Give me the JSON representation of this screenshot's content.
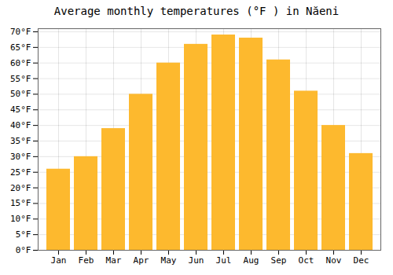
{
  "chart_data": {
    "type": "bar",
    "title": "Average monthly temperatures (°F ) in Năeni",
    "categories": [
      "Jan",
      "Feb",
      "Mar",
      "Apr",
      "May",
      "Jun",
      "Jul",
      "Aug",
      "Sep",
      "Oct",
      "Nov",
      "Dec"
    ],
    "values": [
      26,
      30,
      39,
      50,
      60,
      66,
      69,
      68,
      61,
      51,
      40,
      31
    ],
    "color": "#FDB92E",
    "ylim": [
      0,
      71
    ],
    "yticks": [
      {
        "value": 0,
        "label": "0°F"
      },
      {
        "value": 5,
        "label": "5°F"
      },
      {
        "value": 10,
        "label": "10°F"
      },
      {
        "value": 15,
        "label": "15°F"
      },
      {
        "value": 20,
        "label": "20°F"
      },
      {
        "value": 25,
        "label": "25°F"
      },
      {
        "value": 30,
        "label": "30°F"
      },
      {
        "value": 35,
        "label": "35°F"
      },
      {
        "value": 40,
        "label": "40°F"
      },
      {
        "value": 45,
        "label": "45°F"
      },
      {
        "value": 50,
        "label": "50°F"
      },
      {
        "value": 55,
        "label": "55°F"
      },
      {
        "value": 60,
        "label": "60°F"
      },
      {
        "value": 65,
        "label": "65°F"
      },
      {
        "value": 70,
        "label": "70°F"
      }
    ],
    "grid": true
  }
}
